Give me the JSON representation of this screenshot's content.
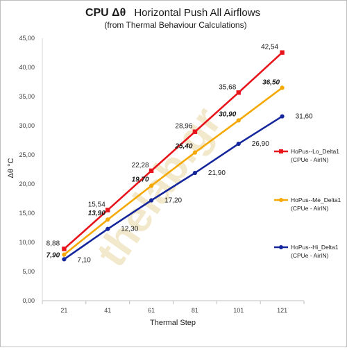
{
  "chart_data": {
    "type": "line",
    "title_main": "CPU  Δθ",
    "title_rest": "Horizontal Push All Airflows",
    "subtitle": "(from Thermal Behaviour Calculations)",
    "xlabel": "Thermal Step",
    "ylabel": "Δθ °C",
    "categories": [
      "21",
      "41",
      "61",
      "81",
      "101",
      "121"
    ],
    "ylim": [
      0,
      45
    ],
    "yticks": [
      "0,00",
      "5,00",
      "10,00",
      "15,00",
      "20,00",
      "25,00",
      "30,00",
      "35,00",
      "40,00",
      "45,00"
    ],
    "grid": "none",
    "legend_position": "right",
    "series": [
      {
        "name": "HoPus--Lo_Delta1",
        "sub": "(CPUe - AirIN)",
        "color": "#e8141b",
        "marker": "square",
        "label_style": "normal",
        "values": [
          8.88,
          15.54,
          22.28,
          28.96,
          35.68,
          42.54
        ],
        "labels": [
          "8,88",
          "15,54",
          "22,28",
          "28,96",
          "35,68",
          "42,54"
        ]
      },
      {
        "name": "HoPus--Me_Delta1",
        "sub": "(CPUe - AirIN)",
        "color": "#f5a800",
        "marker": "circle",
        "label_style": "bold-italic",
        "values": [
          7.9,
          13.9,
          19.7,
          25.4,
          30.9,
          36.5
        ],
        "labels": [
          "7,90",
          "13,90",
          "19,70",
          "25,40",
          "30,90",
          "36,50"
        ]
      },
      {
        "name": "HoPus--Hi_Delta1",
        "sub": "(CPUe - AirIN)",
        "color": "#15269c",
        "marker": "circle",
        "label_style": "normal",
        "values": [
          7.1,
          12.3,
          17.2,
          21.9,
          26.9,
          31.6
        ],
        "labels": [
          "7,10",
          "12,30",
          "17,20",
          "21,90",
          "26,90",
          "31,60"
        ]
      }
    ]
  },
  "watermark": "thelab.gr"
}
